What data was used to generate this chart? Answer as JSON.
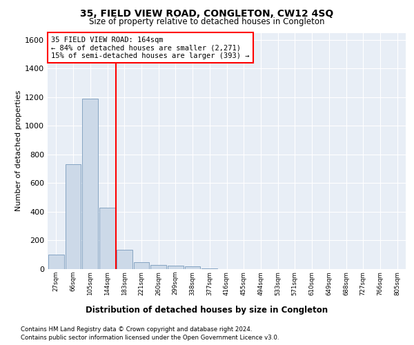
{
  "title": "35, FIELD VIEW ROAD, CONGLETON, CW12 4SQ",
  "subtitle": "Size of property relative to detached houses in Congleton",
  "xlabel": "Distribution of detached houses by size in Congleton",
  "ylabel": "Number of detached properties",
  "bar_color": "#ccd9e8",
  "bar_edge_color": "#7799bb",
  "categories": [
    "27sqm",
    "66sqm",
    "105sqm",
    "144sqm",
    "183sqm",
    "221sqm",
    "260sqm",
    "299sqm",
    "338sqm",
    "377sqm",
    "416sqm",
    "455sqm",
    "494sqm",
    "533sqm",
    "571sqm",
    "610sqm",
    "649sqm",
    "688sqm",
    "727sqm",
    "766sqm",
    "805sqm"
  ],
  "values": [
    100,
    730,
    1190,
    430,
    135,
    50,
    30,
    25,
    20,
    5,
    0,
    0,
    0,
    0,
    0,
    0,
    0,
    0,
    0,
    0,
    0
  ],
  "red_line_x": 3.5,
  "annotation_text": "35 FIELD VIEW ROAD: 164sqm\n← 84% of detached houses are smaller (2,271)\n15% of semi-detached houses are larger (393) →",
  "ylim": [
    0,
    1650
  ],
  "yticks": [
    0,
    200,
    400,
    600,
    800,
    1000,
    1200,
    1400,
    1600
  ],
  "footer1": "Contains HM Land Registry data © Crown copyright and database right 2024.",
  "footer2": "Contains public sector information licensed under the Open Government Licence v3.0.",
  "plot_bg_color": "#e8eef6"
}
